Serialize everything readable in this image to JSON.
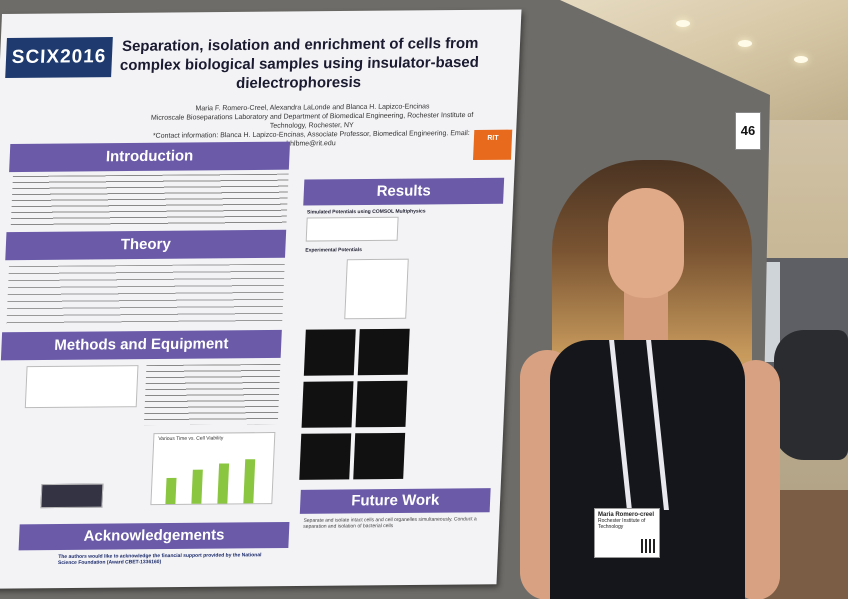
{
  "poster": {
    "logo": "SCIX2016",
    "title": "Separation, isolation and enrichment of cells from complex biological samples using insulator-based dielectrophoresis",
    "authors": "Maria F. Romero-Creel, Alexandra LaLonde and Blanca H. Lapizco-Encinas",
    "affiliation": "Microscale Bioseparations Laboratory and Department of Biomedical Engineering, Rochester Institute of Technology, Rochester, NY",
    "contact": "*Contact information: Blanca H. Lapizco-Encinas, Associate Professor, Biomedical Engineering. Email: bhlbme@rit.edu",
    "sections": {
      "introduction": "Introduction",
      "theory": "Theory",
      "methods": "Methods and Equipment",
      "results": "Results",
      "future_work": "Future Work",
      "acknowledgements": "Acknowledgements"
    },
    "results_sub": "Simulated Potentials using COMSOL Multiphysics",
    "experimental": "Experimental Potentials",
    "chart_title": "Various Time vs. Cell Viability",
    "ack_text": "The authors would like to acknowledge the financial support provided by the National Science Foundation (Award CBET-1336160)",
    "future_text": "Separate and isolate intact cells and cell organelles simultaneously. Conduct a separation and isolation of bacterial cells"
  },
  "booth_number": "46",
  "badge": {
    "name": "Maria Romero-creel",
    "org": "Rochester Institute of Technology"
  },
  "colors": {
    "header": "#6a5aa8",
    "logo_bg": "#1e3a6e",
    "rit_orange": "#e86a1c",
    "bar_green": "#8ac640"
  }
}
